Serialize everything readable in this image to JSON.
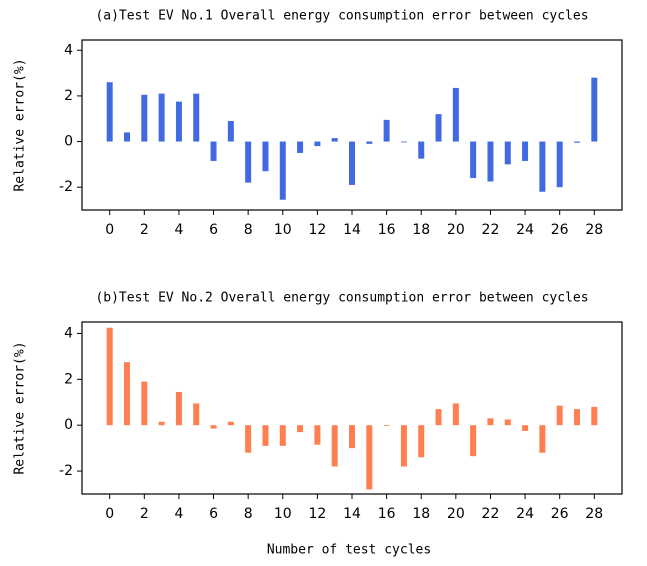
{
  "chart_data": [
    {
      "type": "bar",
      "title": "(a)Test EV No.1 Overall energy consumption error between cycles",
      "y_label": "Relative error(%)",
      "color": "#4169e1",
      "x": [
        0,
        1,
        2,
        3,
        4,
        5,
        6,
        7,
        8,
        9,
        10,
        11,
        12,
        13,
        14,
        15,
        16,
        17,
        18,
        19,
        20,
        21,
        22,
        23,
        24,
        25,
        26,
        27,
        28
      ],
      "values": [
        2.6,
        0.4,
        2.05,
        2.1,
        1.75,
        2.1,
        -0.85,
        0.9,
        -1.8,
        -1.3,
        -2.55,
        -0.5,
        -0.2,
        0.15,
        -1.9,
        -0.1,
        0.95,
        -0.03,
        -0.75,
        1.2,
        2.35,
        -1.6,
        -1.75,
        -1.0,
        -0.85,
        -2.2,
        -2.0,
        -0.05,
        2.8
      ],
      "xlim": [
        -1.6,
        29.6
      ],
      "ylim": [
        -3,
        4.45
      ],
      "xticks": [
        0,
        2,
        4,
        6,
        8,
        10,
        12,
        14,
        16,
        18,
        20,
        22,
        24,
        26,
        28
      ],
      "yticks": [
        -2,
        0,
        2,
        4
      ]
    },
    {
      "type": "bar",
      "title": "(b)Test EV No.2 Overall energy consumption error between cycles",
      "y_label": "Relative error(%)",
      "x_label": "Number of test cycles",
      "color": "#ff7f50",
      "x": [
        0,
        1,
        2,
        3,
        4,
        5,
        6,
        7,
        8,
        9,
        10,
        11,
        12,
        13,
        14,
        15,
        16,
        17,
        18,
        19,
        20,
        21,
        22,
        23,
        24,
        25,
        26,
        27,
        28
      ],
      "values": [
        4.25,
        2.75,
        1.9,
        0.15,
        1.45,
        0.95,
        -0.15,
        0.15,
        -1.2,
        -0.9,
        -0.9,
        -0.3,
        -0.85,
        -1.8,
        -1.0,
        -2.8,
        -0.03,
        -1.8,
        -1.4,
        0.7,
        0.95,
        -1.35,
        0.3,
        0.25,
        -0.25,
        -1.2,
        0.85,
        0.7,
        0.8
      ],
      "xlim": [
        -1.6,
        29.6
      ],
      "ylim": [
        -3,
        4.5
      ],
      "xticks": [
        0,
        2,
        4,
        6,
        8,
        10,
        12,
        14,
        16,
        18,
        20,
        22,
        24,
        26,
        28
      ],
      "yticks": [
        -2,
        0,
        2,
        4
      ]
    }
  ]
}
